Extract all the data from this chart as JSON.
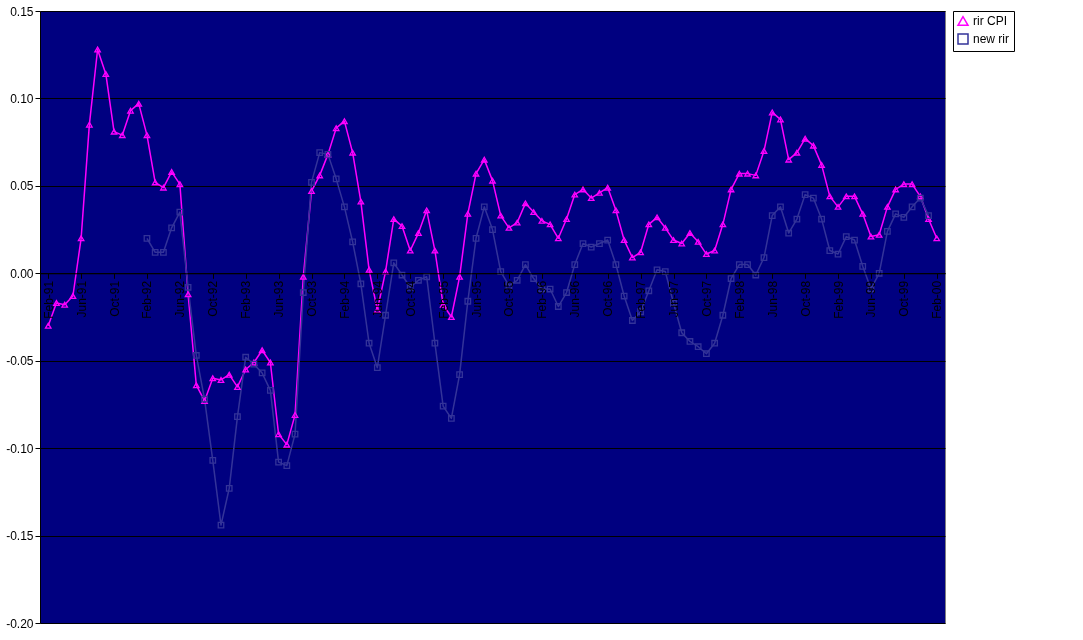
{
  "chart_data": {
    "type": "line",
    "categories": [
      "Feb-91",
      null,
      null,
      null,
      "Jun-91",
      null,
      null,
      null,
      "Oct-91",
      null,
      null,
      null,
      "Feb-92",
      null,
      null,
      null,
      "Jun-92",
      null,
      null,
      null,
      "Oct-92",
      null,
      null,
      null,
      "Feb-93",
      null,
      null,
      null,
      "Jun-93",
      null,
      null,
      null,
      "Oct-93",
      null,
      null,
      null,
      "Feb-94",
      null,
      null,
      null,
      "Jun-94",
      null,
      null,
      null,
      "Oct-94",
      null,
      null,
      null,
      "Feb-95",
      null,
      null,
      null,
      "Jun-95",
      null,
      null,
      null,
      "Oct-95",
      null,
      null,
      null,
      "Feb-96",
      null,
      null,
      null,
      "Jun-96",
      null,
      null,
      null,
      "Oct-96",
      null,
      null,
      null,
      "Feb-97",
      null,
      null,
      null,
      "Jun-97",
      null,
      null,
      null,
      "Oct-97",
      null,
      null,
      null,
      "Feb-98",
      null,
      null,
      null,
      "Jun-98",
      null,
      null,
      null,
      "Oct-98",
      null,
      null,
      null,
      "Feb-99",
      null,
      null,
      null,
      "Jun-99",
      null,
      null,
      null,
      "Oct-99",
      null,
      null,
      null,
      "Feb-00"
    ],
    "series": [
      {
        "name": "rir CPI",
        "color": "#ff00ff",
        "marker": "triangle",
        "values": [
          -0.03,
          -0.017,
          -0.018,
          -0.013,
          0.02,
          0.085,
          0.128,
          0.114,
          0.081,
          0.079,
          0.093,
          0.097,
          0.079,
          0.052,
          0.049,
          0.058,
          0.051,
          -0.012,
          -0.064,
          -0.073,
          -0.06,
          -0.061,
          -0.058,
          -0.065,
          -0.055,
          -0.051,
          -0.044,
          -0.051,
          -0.092,
          -0.098,
          -0.081,
          -0.002,
          0.047,
          0.056,
          0.068,
          0.083,
          0.087,
          0.069,
          0.041,
          0.002,
          -0.021,
          0.001,
          0.031,
          0.027,
          0.013,
          0.023,
          0.036,
          0.013,
          -0.018,
          -0.025,
          -0.002,
          0.034,
          0.057,
          0.065,
          0.053,
          0.033,
          0.026,
          0.029,
          0.04,
          0.035,
          0.03,
          0.028,
          0.02,
          0.031,
          0.045,
          0.048,
          0.043,
          0.046,
          0.049,
          0.036,
          0.019,
          0.009,
          0.012,
          0.028,
          0.032,
          0.026,
          0.019,
          0.017,
          0.023,
          0.018,
          0.011,
          0.013,
          0.028,
          0.048,
          0.057,
          0.057,
          0.056,
          0.07,
          0.092,
          0.088,
          0.065,
          0.069,
          0.077,
          0.073,
          0.062,
          0.044,
          0.038,
          0.044,
          0.044,
          0.034,
          0.021,
          0.022,
          0.038,
          0.048,
          0.051,
          0.051,
          0.044,
          0.031,
          0.02
        ]
      },
      {
        "name": "new rir",
        "color": "#333399",
        "marker": "square",
        "values": [
          null,
          null,
          null,
          null,
          null,
          null,
          null,
          null,
          null,
          null,
          null,
          null,
          0.02,
          0.012,
          0.012,
          0.026,
          0.035,
          -0.008,
          -0.047,
          -0.072,
          -0.107,
          -0.144,
          -0.123,
          -0.082,
          -0.048,
          -0.052,
          -0.057,
          -0.067,
          -0.108,
          -0.11,
          -0.092,
          -0.011,
          0.052,
          0.069,
          0.068,
          0.054,
          0.038,
          0.018,
          -0.006,
          -0.04,
          -0.054,
          -0.024,
          0.006,
          -0.001,
          -0.008,
          -0.004,
          -0.002,
          -0.04,
          -0.076,
          -0.083,
          -0.058,
          -0.016,
          0.02,
          0.038,
          0.025,
          0.001,
          -0.007,
          -0.004,
          0.005,
          -0.003,
          -0.009,
          -0.009,
          -0.019,
          -0.011,
          0.005,
          0.017,
          0.015,
          0.017,
          0.019,
          0.005,
          -0.013,
          -0.027,
          -0.022,
          -0.01,
          0.002,
          0.001,
          -0.017,
          -0.034,
          -0.039,
          -0.042,
          -0.046,
          -0.04,
          -0.024,
          -0.003,
          0.005,
          0.005,
          -0.001,
          0.009,
          0.033,
          0.038,
          0.023,
          0.031,
          0.045,
          0.043,
          0.031,
          0.013,
          0.011,
          0.021,
          0.019,
          0.004,
          -0.009,
          0.0,
          0.024,
          0.034,
          0.032,
          0.038,
          0.043,
          0.033,
          null
        ]
      }
    ],
    "ylim": [
      -0.2,
      0.15
    ],
    "yticks": [
      {
        "value": -0.2,
        "label": "-0.20"
      },
      {
        "value": -0.15,
        "label": "-0.15"
      },
      {
        "value": -0.1,
        "label": "-0.10"
      },
      {
        "value": -0.05,
        "label": "-0.05"
      },
      {
        "value": 0,
        "label": "0.00"
      },
      {
        "value": 0.05,
        "label": "0.05"
      },
      {
        "value": 0.1,
        "label": "0.10"
      },
      {
        "value": 0.15,
        "label": "0.15"
      }
    ],
    "grid": "y",
    "legend": "right",
    "line_style": "solid"
  }
}
